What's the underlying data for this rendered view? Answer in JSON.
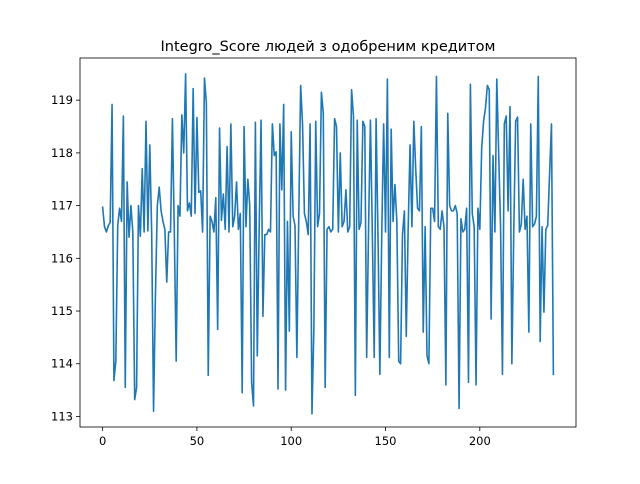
{
  "chart_data": {
    "type": "line",
    "title": "Integro_Score людей з одобреним кредитом",
    "xlabel": "",
    "ylabel": "",
    "xlim": [
      -12,
      251
    ],
    "ylim": [
      112.8,
      119.8
    ],
    "x_ticks": [
      0,
      50,
      100,
      150,
      200
    ],
    "y_ticks": [
      113,
      114,
      115,
      116,
      117,
      118,
      119
    ],
    "grid": false,
    "line_color": "#1f77b4",
    "series": [
      {
        "name": "",
        "x_start": 0,
        "x_step": 1,
        "values": [
          116.97,
          116.6,
          116.5,
          116.62,
          116.68,
          118.92,
          113.68,
          114.05,
          116.62,
          116.95,
          116.7,
          118.7,
          113.55,
          117.45,
          116.4,
          117.0,
          116.5,
          113.32,
          113.55,
          117.0,
          116.42,
          117.7,
          116.5,
          118.6,
          116.52,
          118.15,
          116.5,
          113.1,
          115.3,
          117.0,
          117.35,
          116.9,
          116.7,
          116.55,
          115.55,
          116.5,
          116.5,
          118.65,
          116.5,
          114.05,
          117.0,
          116.8,
          118.72,
          118.0,
          119.5,
          116.9,
          117.05,
          116.8,
          119.22,
          116.85,
          118.67,
          117.25,
          117.28,
          116.5,
          119.42,
          118.95,
          113.78,
          116.8,
          116.7,
          116.5,
          117.15,
          114.65,
          118.47,
          116.72,
          117.22,
          116.55,
          118.12,
          116.5,
          118.55,
          116.6,
          116.8,
          117.45,
          116.55,
          116.85,
          113.45,
          118.5,
          116.6,
          117.5,
          117.0,
          113.65,
          113.2,
          118.58,
          114.15,
          116.55,
          118.62,
          114.9,
          116.45,
          116.45,
          116.55,
          116.5,
          118.55,
          117.95,
          118.02,
          113.52,
          118.55,
          117.3,
          118.92,
          113.5,
          116.7,
          114.62,
          118.4,
          116.8,
          116.62,
          114.12,
          116.8,
          119.28,
          118.55,
          116.85,
          116.7,
          116.45,
          118.55,
          113.05,
          114.65,
          118.6,
          116.6,
          116.85,
          119.15,
          118.75,
          113.55,
          116.55,
          116.6,
          116.5,
          116.55,
          118.65,
          118.5,
          116.5,
          118.0,
          116.6,
          116.7,
          117.3,
          116.5,
          116.6,
          119.2,
          118.7,
          113.4,
          118.62,
          116.55,
          116.68,
          118.6,
          118.5,
          114.12,
          116.55,
          118.62,
          116.5,
          114.12,
          118.65,
          116.45,
          113.8,
          116.45,
          118.55,
          116.5,
          119.4,
          114.12,
          118.45,
          116.7,
          117.4,
          116.7,
          114.05,
          114.0,
          116.45,
          116.9,
          114.52,
          116.55,
          118.15,
          116.6,
          118.6,
          117.7,
          116.95,
          116.9,
          118.5,
          114.6,
          116.6,
          114.15,
          114.0,
          116.95,
          116.95,
          116.7,
          119.45,
          116.6,
          116.55,
          116.9,
          116.6,
          113.6,
          118.75,
          117.0,
          116.9,
          116.9,
          117.0,
          116.85,
          113.15,
          116.75,
          116.5,
          116.55,
          116.95,
          113.65,
          119.3,
          116.85,
          116.6,
          113.6,
          116.95,
          116.55,
          118.1,
          118.6,
          118.85,
          119.28,
          119.2,
          114.85,
          117.95,
          116.5,
          119.4,
          118.0,
          116.6,
          113.8,
          118.55,
          118.7,
          116.9,
          118.88,
          114.0,
          116.5,
          118.6,
          118.68,
          116.5,
          116.65,
          117.5,
          116.55,
          116.8,
          114.6,
          118.55,
          116.6,
          116.65,
          116.8,
          119.45,
          114.42,
          116.6,
          114.98,
          116.55,
          116.62,
          117.6,
          118.55,
          113.8
        ]
      }
    ]
  }
}
